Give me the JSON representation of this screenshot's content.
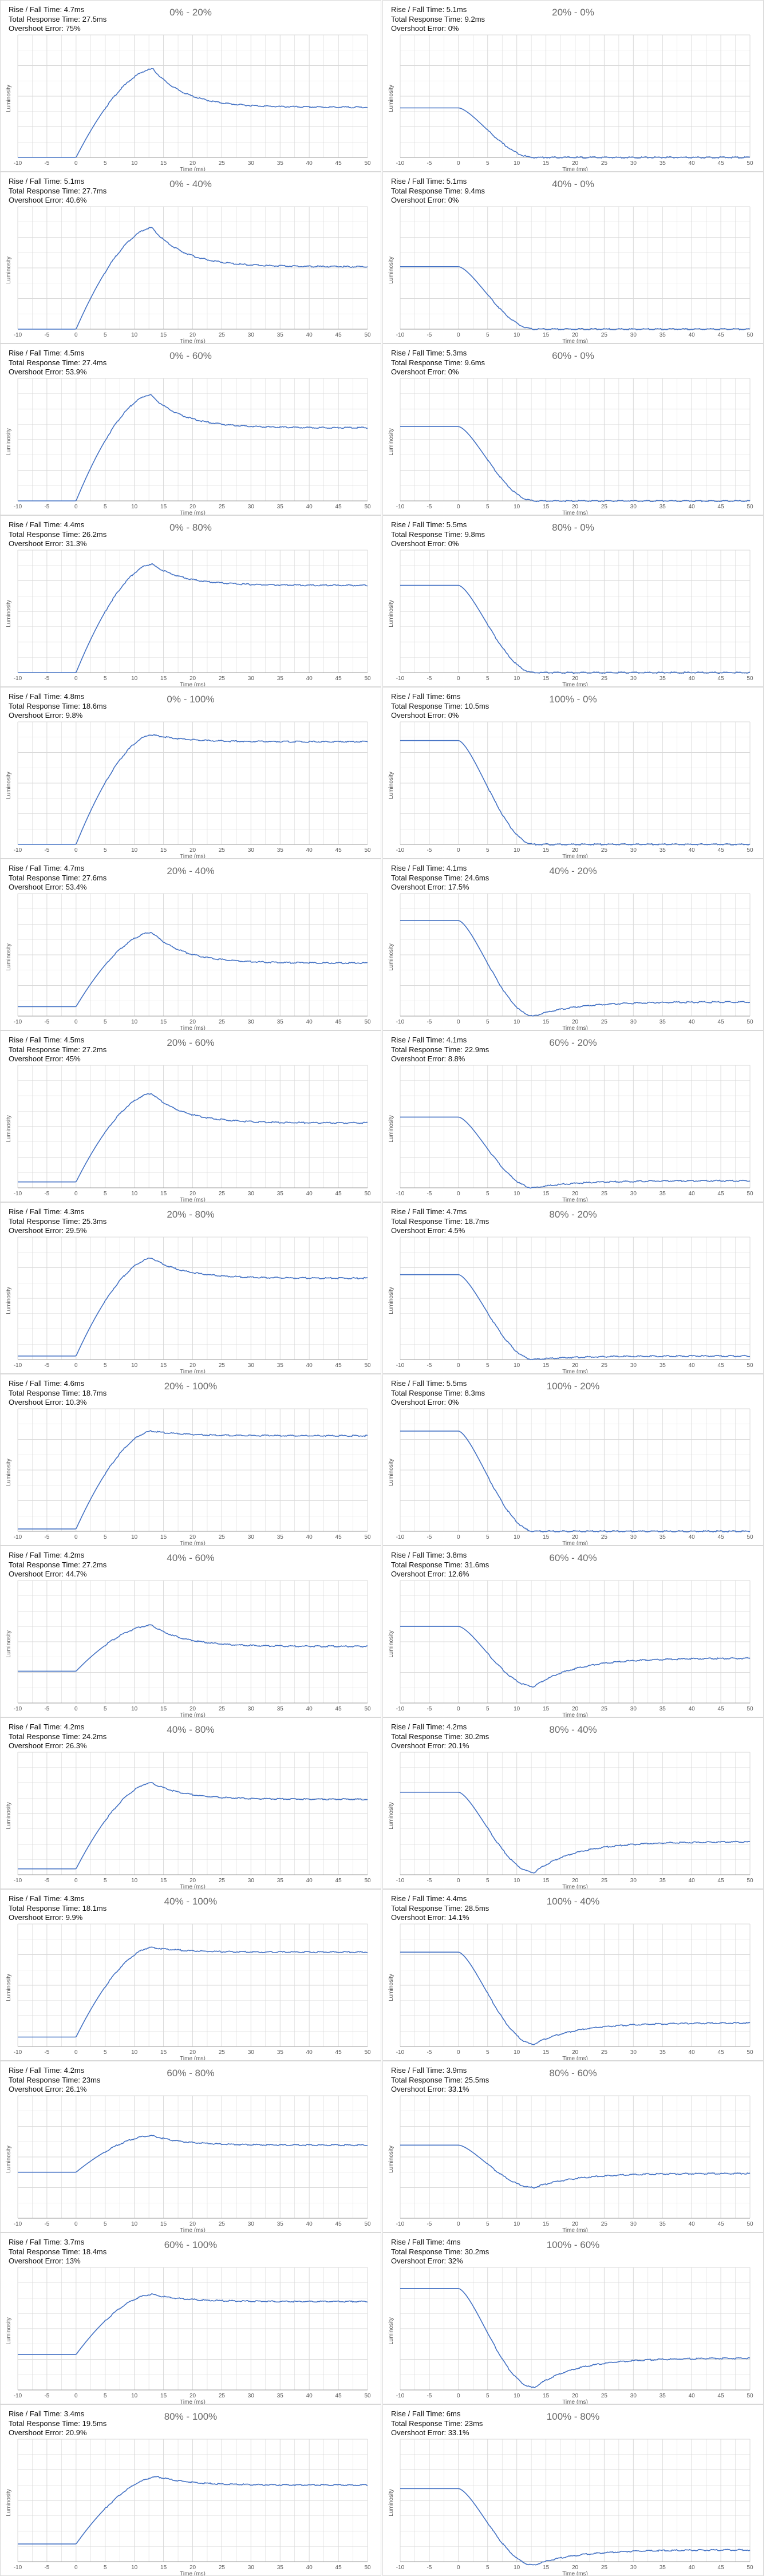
{
  "labels": {
    "rise_prefix": "Rise / Fall Time: ",
    "total_prefix": "Total Response Time: ",
    "over_prefix": "Overshoot Error: ",
    "xlabel": "Time (ms)",
    "ylabel": "Luminosity"
  },
  "colors": {
    "line": "#4472c4",
    "grid": "#d9d9d9",
    "axis": "#9a9a9a",
    "text": "#595959"
  },
  "chart_data": [
    {
      "type": "line",
      "title": "0% - 20%",
      "rise": "4.7ms",
      "total": "27.5ms",
      "overshoot": "75%",
      "xlim": [
        -10,
        50
      ],
      "xticks": [
        -10,
        -5,
        0,
        5,
        10,
        15,
        20,
        25,
        30,
        35,
        40,
        45,
        50
      ],
      "xlabel": "Time (ms)",
      "ylabel": "Luminosity",
      "curve": {
        "dir": "rise",
        "from": 0.0,
        "peak": 0.75,
        "end": 0.425,
        "tpeak": 13.2
      }
    },
    {
      "type": "line",
      "title": "20% - 0%",
      "rise": "5.1ms",
      "total": "9.2ms",
      "overshoot": "0%",
      "xlim": [
        -10,
        50
      ],
      "xticks": [
        -10,
        -5,
        0,
        5,
        10,
        15,
        20,
        25,
        30,
        35,
        40,
        45,
        50
      ],
      "xlabel": "Time (ms)",
      "ylabel": "Luminosity",
      "curve": {
        "dir": "fall",
        "from": 0.42,
        "end": 0.0,
        "dip": 0.0
      }
    },
    {
      "type": "line",
      "title": "0% - 40%",
      "rise": "5.1ms",
      "total": "27.7ms",
      "overshoot": "40.6%",
      "xlim": [
        -10,
        50
      ],
      "xticks": [
        -10,
        -5,
        0,
        5,
        10,
        15,
        20,
        25,
        30,
        35,
        40,
        45,
        50
      ],
      "xlabel": "Time (ms)",
      "ylabel": "Luminosity",
      "curve": {
        "dir": "rise",
        "from": 0.0,
        "peak": 0.86,
        "end": 0.53,
        "tpeak": 13.0
      }
    },
    {
      "type": "line",
      "title": "40% - 0%",
      "rise": "5.1ms",
      "total": "9.4ms",
      "overshoot": "0%",
      "xlim": [
        -10,
        50
      ],
      "xticks": [
        -10,
        -5,
        0,
        5,
        10,
        15,
        20,
        25,
        30,
        35,
        40,
        45,
        50
      ],
      "xlabel": "Time (ms)",
      "ylabel": "Luminosity",
      "curve": {
        "dir": "fall",
        "from": 0.53,
        "end": 0.0,
        "dip": 0.0
      }
    },
    {
      "type": "line",
      "title": "0% - 60%",
      "rise": "4.5ms",
      "total": "27.4ms",
      "overshoot": "53.9%",
      "xlim": [
        -10,
        50
      ],
      "xticks": [
        -10,
        -5,
        0,
        5,
        10,
        15,
        20,
        25,
        30,
        35,
        40,
        45,
        50
      ],
      "xlabel": "Time (ms)",
      "ylabel": "Luminosity",
      "curve": {
        "dir": "rise",
        "from": 0.0,
        "peak": 0.9,
        "end": 0.62,
        "tpeak": 12.8
      }
    },
    {
      "type": "line",
      "title": "60% - 0%",
      "rise": "5.3ms",
      "total": "9.6ms",
      "overshoot": "0%",
      "xlim": [
        -10,
        50
      ],
      "xticks": [
        -10,
        -5,
        0,
        5,
        10,
        15,
        20,
        25,
        30,
        35,
        40,
        45,
        50
      ],
      "xlabel": "Time (ms)",
      "ylabel": "Luminosity",
      "curve": {
        "dir": "fall",
        "from": 0.63,
        "end": 0.0,
        "dip": 0.0
      }
    },
    {
      "type": "line",
      "title": "0% - 80%",
      "rise": "4.4ms",
      "total": "26.2ms",
      "overshoot": "31.3%",
      "xlim": [
        -10,
        50
      ],
      "xticks": [
        -10,
        -5,
        0,
        5,
        10,
        15,
        20,
        25,
        30,
        35,
        40,
        45,
        50
      ],
      "xlabel": "Time (ms)",
      "ylabel": "Luminosity",
      "curve": {
        "dir": "rise",
        "from": 0.0,
        "peak": 0.92,
        "end": 0.74,
        "tpeak": 13.0
      }
    },
    {
      "type": "line",
      "title": "80% - 0%",
      "rise": "5.5ms",
      "total": "9.8ms",
      "overshoot": "0%",
      "xlim": [
        -10,
        50
      ],
      "xticks": [
        -10,
        -5,
        0,
        5,
        10,
        15,
        20,
        25,
        30,
        35,
        40,
        45,
        50
      ],
      "xlabel": "Time (ms)",
      "ylabel": "Luminosity",
      "curve": {
        "dir": "fall",
        "from": 0.74,
        "end": 0.0,
        "dip": 0.0
      }
    },
    {
      "type": "line",
      "title": "0% - 100%",
      "rise": "4.8ms",
      "total": "18.6ms",
      "overshoot": "9.8%",
      "xlim": [
        -10,
        50
      ],
      "xticks": [
        -10,
        -5,
        0,
        5,
        10,
        15,
        20,
        25,
        30,
        35,
        40,
        45,
        50
      ],
      "xlabel": "Time (ms)",
      "ylabel": "Luminosity",
      "curve": {
        "dir": "rise",
        "from": 0.0,
        "peak": 0.93,
        "end": 0.87,
        "tpeak": 13.0
      }
    },
    {
      "type": "line",
      "title": "100% - 0%",
      "rise": "6ms",
      "total": "10.5ms",
      "overshoot": "0%",
      "xlim": [
        -10,
        50
      ],
      "xticks": [
        -10,
        -5,
        0,
        5,
        10,
        15,
        20,
        25,
        30,
        35,
        40,
        45,
        50
      ],
      "xlabel": "Time (ms)",
      "ylabel": "Luminosity",
      "curve": {
        "dir": "fall",
        "from": 0.88,
        "end": 0.0,
        "dip": 0.0
      }
    },
    {
      "type": "line",
      "title": "20% - 40%",
      "rise": "4.7ms",
      "total": "27.6ms",
      "overshoot": "53.4%",
      "xlim": [
        -10,
        50
      ],
      "xticks": [
        -10,
        -5,
        0,
        5,
        10,
        15,
        20,
        25,
        30,
        35,
        40,
        45,
        50
      ],
      "xlabel": "Time (ms)",
      "ylabel": "Luminosity",
      "curve": {
        "dir": "rise",
        "from": 0.08,
        "peak": 0.71,
        "end": 0.45,
        "tpeak": 13.0
      }
    },
    {
      "type": "line",
      "title": "40% - 20%",
      "rise": "4.1ms",
      "total": "24.6ms",
      "overshoot": "17.5%",
      "xlim": [
        -10,
        50
      ],
      "xticks": [
        -10,
        -5,
        0,
        5,
        10,
        15,
        20,
        25,
        30,
        35,
        40,
        45,
        50
      ],
      "xlabel": "Time (ms)",
      "ylabel": "Luminosity",
      "curve": {
        "dir": "fall",
        "from": 0.81,
        "end": 0.12,
        "dip": 0.0
      }
    },
    {
      "type": "line",
      "title": "20% - 60%",
      "rise": "4.5ms",
      "total": "27.2ms",
      "overshoot": "45%",
      "xlim": [
        -10,
        50
      ],
      "xticks": [
        -10,
        -5,
        0,
        5,
        10,
        15,
        20,
        25,
        30,
        35,
        40,
        45,
        50
      ],
      "xlabel": "Time (ms)",
      "ylabel": "Luminosity",
      "curve": {
        "dir": "rise",
        "from": 0.05,
        "peak": 0.8,
        "end": 0.55,
        "tpeak": 13.0
      }
    },
    {
      "type": "line",
      "title": "60% - 20%",
      "rise": "4.1ms",
      "total": "22.9ms",
      "overshoot": "8.8%",
      "xlim": [
        -10,
        50
      ],
      "xticks": [
        -10,
        -5,
        0,
        5,
        10,
        15,
        20,
        25,
        30,
        35,
        40,
        45,
        50
      ],
      "xlabel": "Time (ms)",
      "ylabel": "Luminosity",
      "curve": {
        "dir": "fall",
        "from": 0.6,
        "end": 0.06,
        "dip": 0.0
      }
    },
    {
      "type": "line",
      "title": "20% - 80%",
      "rise": "4.3ms",
      "total": "25.3ms",
      "overshoot": "29.5%",
      "xlim": [
        -10,
        50
      ],
      "xticks": [
        -10,
        -5,
        0,
        5,
        10,
        15,
        20,
        25,
        30,
        35,
        40,
        45,
        50
      ],
      "xlabel": "Time (ms)",
      "ylabel": "Luminosity",
      "curve": {
        "dir": "rise",
        "from": 0.03,
        "peak": 0.86,
        "end": 0.69,
        "tpeak": 13.0
      }
    },
    {
      "type": "line",
      "title": "80% - 20%",
      "rise": "4.7ms",
      "total": "18.7ms",
      "overshoot": "4.5%",
      "xlim": [
        -10,
        50
      ],
      "xticks": [
        -10,
        -5,
        0,
        5,
        10,
        15,
        20,
        25,
        30,
        35,
        40,
        45,
        50
      ],
      "xlabel": "Time (ms)",
      "ylabel": "Luminosity",
      "curve": {
        "dir": "fall",
        "from": 0.72,
        "end": 0.03,
        "dip": 0.0
      }
    },
    {
      "type": "line",
      "title": "20% - 100%",
      "rise": "4.6ms",
      "total": "18.7ms",
      "overshoot": "10.3%",
      "xlim": [
        -10,
        50
      ],
      "xticks": [
        -10,
        -5,
        0,
        5,
        10,
        15,
        20,
        25,
        30,
        35,
        40,
        45,
        50
      ],
      "xlabel": "Time (ms)",
      "ylabel": "Luminosity",
      "curve": {
        "dir": "rise",
        "from": 0.02,
        "peak": 0.85,
        "end": 0.81,
        "tpeak": 13.0
      }
    },
    {
      "type": "line",
      "title": "100% - 20%",
      "rise": "5.5ms",
      "total": "8.3ms",
      "overshoot": "0%",
      "xlim": [
        -10,
        50
      ],
      "xticks": [
        -10,
        -5,
        0,
        5,
        10,
        15,
        20,
        25,
        30,
        35,
        40,
        45,
        50
      ],
      "xlabel": "Time (ms)",
      "ylabel": "Luminosity",
      "curve": {
        "dir": "fall",
        "from": 0.85,
        "end": 0.0,
        "dip": 0.0
      }
    },
    {
      "type": "line",
      "title": "40% - 60%",
      "rise": "4.2ms",
      "total": "27.2ms",
      "overshoot": "44.7%",
      "xlim": [
        -10,
        50
      ],
      "xticks": [
        -10,
        -5,
        0,
        5,
        10,
        15,
        20,
        25,
        30,
        35,
        40,
        45,
        50
      ],
      "xlabel": "Time (ms)",
      "ylabel": "Luminosity",
      "curve": {
        "dir": "rise",
        "from": 0.27,
        "peak": 0.66,
        "end": 0.48,
        "tpeak": 13.0
      }
    },
    {
      "type": "line",
      "title": "60% - 40%",
      "rise": "3.8ms",
      "total": "31.6ms",
      "overshoot": "12.6%",
      "xlim": [
        -10,
        50
      ],
      "xticks": [
        -10,
        -5,
        0,
        5,
        10,
        15,
        20,
        25,
        30,
        35,
        40,
        45,
        50
      ],
      "xlabel": "Time (ms)",
      "ylabel": "Luminosity",
      "curve": {
        "dir": "fall",
        "from": 0.65,
        "end": 0.38,
        "dip": 0.14
      }
    },
    {
      "type": "line",
      "title": "40% - 80%",
      "rise": "4.2ms",
      "total": "24.2ms",
      "overshoot": "26.3%",
      "xlim": [
        -10,
        50
      ],
      "xticks": [
        -10,
        -5,
        0,
        5,
        10,
        15,
        20,
        25,
        30,
        35,
        40,
        45,
        50
      ],
      "xlabel": "Time (ms)",
      "ylabel": "Luminosity",
      "curve": {
        "dir": "rise",
        "from": 0.05,
        "peak": 0.78,
        "end": 0.64,
        "tpeak": 13.0
      }
    },
    {
      "type": "line",
      "title": "80% - 40%",
      "rise": "4.2ms",
      "total": "30.2ms",
      "overshoot": "20.1%",
      "xlim": [
        -10,
        50
      ],
      "xticks": [
        -10,
        -5,
        0,
        5,
        10,
        15,
        20,
        25,
        30,
        35,
        40,
        45,
        50
      ],
      "xlabel": "Time (ms)",
      "ylabel": "Luminosity",
      "curve": {
        "dir": "fall",
        "from": 0.7,
        "end": 0.28,
        "dip": 0.02
      }
    },
    {
      "type": "line",
      "title": "40% - 100%",
      "rise": "4.3ms",
      "total": "18.1ms",
      "overshoot": "9.9%",
      "xlim": [
        -10,
        50
      ],
      "xticks": [
        -10,
        -5,
        0,
        5,
        10,
        15,
        20,
        25,
        30,
        35,
        40,
        45,
        50
      ],
      "xlabel": "Time (ms)",
      "ylabel": "Luminosity",
      "curve": {
        "dir": "rise",
        "from": 0.08,
        "peak": 0.84,
        "end": 0.8,
        "tpeak": 13.0
      }
    },
    {
      "type": "line",
      "title": "100% - 40%",
      "rise": "4.4ms",
      "total": "28.5ms",
      "overshoot": "14.1%",
      "xlim": [
        -10,
        50
      ],
      "xticks": [
        -10,
        -5,
        0,
        5,
        10,
        15,
        20,
        25,
        30,
        35,
        40,
        45,
        50
      ],
      "xlabel": "Time (ms)",
      "ylabel": "Luminosity",
      "curve": {
        "dir": "fall",
        "from": 0.8,
        "end": 0.2,
        "dip": 0.02
      }
    },
    {
      "type": "line",
      "title": "60% - 80%",
      "rise": "4.2ms",
      "total": "23ms",
      "overshoot": "26.1%",
      "xlim": [
        -10,
        50
      ],
      "xticks": [
        -10,
        -5,
        0,
        5,
        10,
        15,
        20,
        25,
        30,
        35,
        40,
        45,
        50
      ],
      "xlabel": "Time (ms)",
      "ylabel": "Luminosity",
      "curve": {
        "dir": "rise",
        "from": 0.39,
        "peak": 0.7,
        "end": 0.62,
        "tpeak": 13.0
      }
    },
    {
      "type": "line",
      "title": "80% - 60%",
      "rise": "3.9ms",
      "total": "25.5ms",
      "overshoot": "33.1%",
      "xlim": [
        -10,
        50
      ],
      "xticks": [
        -10,
        -5,
        0,
        5,
        10,
        15,
        20,
        25,
        30,
        35,
        40,
        45,
        50
      ],
      "xlabel": "Time (ms)",
      "ylabel": "Luminosity",
      "curve": {
        "dir": "fall",
        "from": 0.62,
        "end": 0.38,
        "dip": 0.26
      }
    },
    {
      "type": "line",
      "title": "60% - 100%",
      "rise": "3.7ms",
      "total": "18.4ms",
      "overshoot": "13%",
      "xlim": [
        -10,
        50
      ],
      "xticks": [
        -10,
        -5,
        0,
        5,
        10,
        15,
        20,
        25,
        30,
        35,
        40,
        45,
        50
      ],
      "xlabel": "Time (ms)",
      "ylabel": "Luminosity",
      "curve": {
        "dir": "rise",
        "from": 0.3,
        "peak": 0.81,
        "end": 0.75,
        "tpeak": 13.0
      }
    },
    {
      "type": "line",
      "title": "100% - 60%",
      "rise": "4ms",
      "total": "30.2ms",
      "overshoot": "32%",
      "xlim": [
        -10,
        50
      ],
      "xticks": [
        -10,
        -5,
        0,
        5,
        10,
        15,
        20,
        25,
        30,
        35,
        40,
        45,
        50
      ],
      "xlabel": "Time (ms)",
      "ylabel": "Luminosity",
      "curve": {
        "dir": "fall",
        "from": 0.86,
        "end": 0.27,
        "dip": 0.02
      }
    },
    {
      "type": "line",
      "title": "80% - 100%",
      "rise": "3.4ms",
      "total": "19.5ms",
      "overshoot": "20.9%",
      "xlim": [
        -10,
        50
      ],
      "xticks": [
        -10,
        -5,
        0,
        5,
        10,
        15,
        20,
        25,
        30,
        35,
        40,
        45,
        50
      ],
      "xlabel": "Time (ms)",
      "ylabel": "Luminosity",
      "curve": {
        "dir": "rise",
        "from": 0.15,
        "peak": 0.72,
        "end": 0.65,
        "tpeak": 14.0
      }
    },
    {
      "type": "line",
      "title": "100% - 80%",
      "rise": "6ms",
      "total": "23ms",
      "overshoot": "33.1%",
      "xlim": [
        -10,
        50
      ],
      "xticks": [
        -10,
        -5,
        0,
        5,
        10,
        15,
        20,
        25,
        30,
        35,
        40,
        45,
        50
      ],
      "xlabel": "Time (ms)",
      "ylabel": "Luminosity",
      "curve": {
        "dir": "fall",
        "from": 0.62,
        "end": 0.1,
        "dip": -0.03
      }
    }
  ]
}
